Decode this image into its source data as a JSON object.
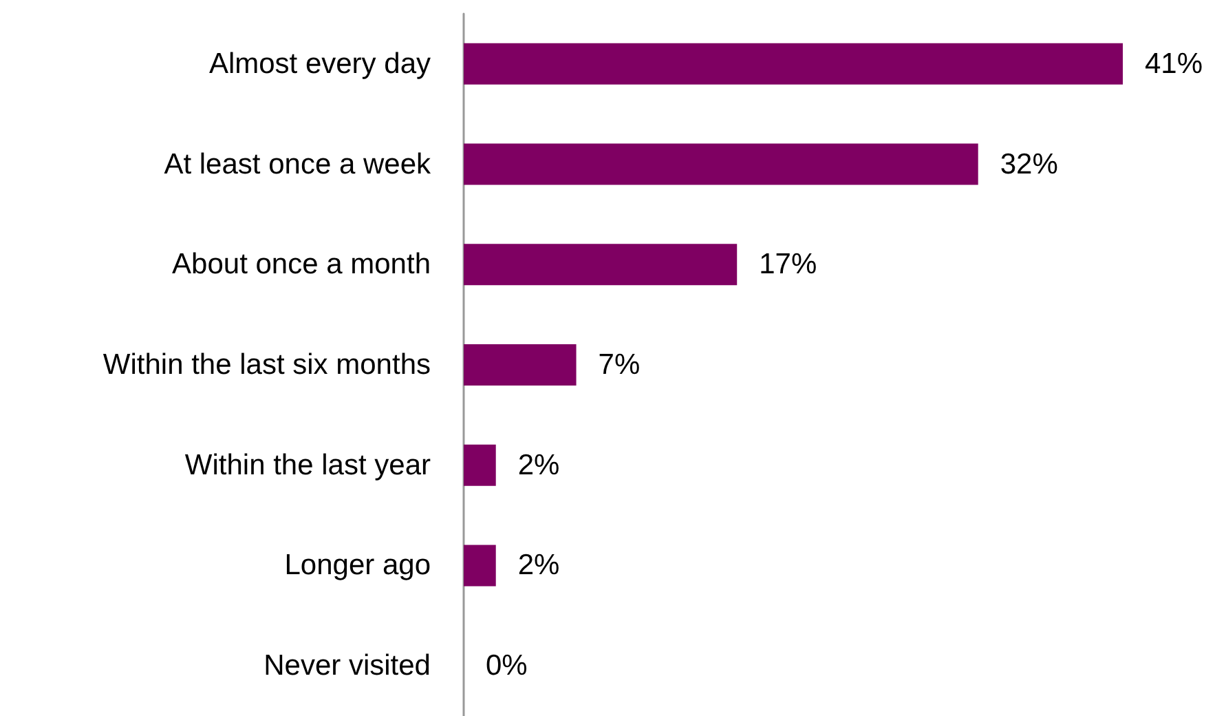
{
  "chart_data": {
    "type": "bar",
    "orientation": "horizontal",
    "categories": [
      "Almost every day",
      "At least once a week",
      "About once a month",
      "Within the last six months",
      "Within the last year",
      "Longer ago",
      "Never visited"
    ],
    "values": [
      41,
      32,
      17,
      7,
      2,
      2,
      0
    ],
    "value_labels": [
      "41%",
      "32%",
      "17%",
      "7%",
      "2%",
      "2%",
      "0%"
    ],
    "color": "#7f0062"
  }
}
